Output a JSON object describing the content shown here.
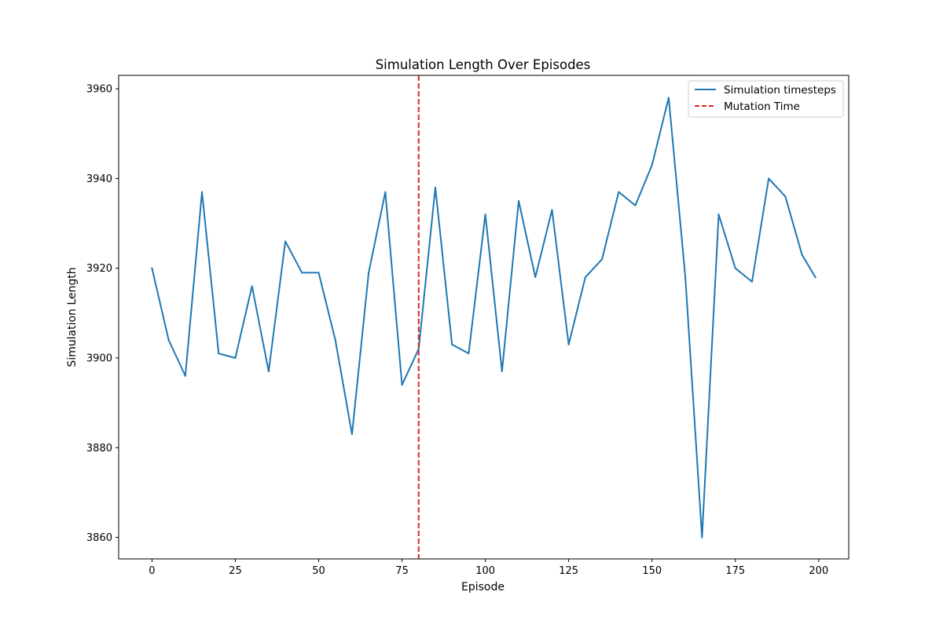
{
  "chart_data": {
    "type": "line",
    "title": "Simulation Length Over Episodes",
    "xlabel": "Episode",
    "ylabel": "Simulation Length",
    "xlim": [
      -10,
      209
    ],
    "ylim": [
      3855.2,
      3963
    ],
    "xticks": [
      0,
      25,
      50,
      75,
      100,
      125,
      150,
      175,
      200
    ],
    "yticks": [
      3860,
      3880,
      3900,
      3920,
      3940,
      3960
    ],
    "grid": false,
    "legend_position": "top-right",
    "series": [
      {
        "name": "Simulation timesteps",
        "color": "#1f77b4",
        "style": "solid",
        "x": [
          0,
          5,
          10,
          15,
          20,
          25,
          30,
          35,
          40,
          45,
          50,
          55,
          60,
          65,
          70,
          75,
          80,
          85,
          90,
          95,
          100,
          105,
          110,
          115,
          120,
          125,
          130,
          135,
          140,
          145,
          150,
          155,
          160,
          165,
          170,
          175,
          180,
          185,
          190,
          195,
          199
        ],
        "y": [
          3920,
          3904,
          3896,
          3937,
          3901,
          3900,
          3916,
          3897,
          3926,
          3919,
          3919,
          3904,
          3883,
          3919,
          3937,
          3894,
          3902,
          3938,
          3903,
          3901,
          3932,
          3897,
          3935,
          3918,
          3933,
          3903,
          3918,
          3922,
          3937,
          3934,
          3943,
          3958,
          3918,
          3860,
          3932,
          3920,
          3917,
          3940,
          3936,
          3923,
          3918
        ]
      }
    ],
    "vlines": [
      {
        "name": "Mutation Time",
        "x": 80,
        "color": "#d62728",
        "style": "dashed"
      }
    ]
  }
}
